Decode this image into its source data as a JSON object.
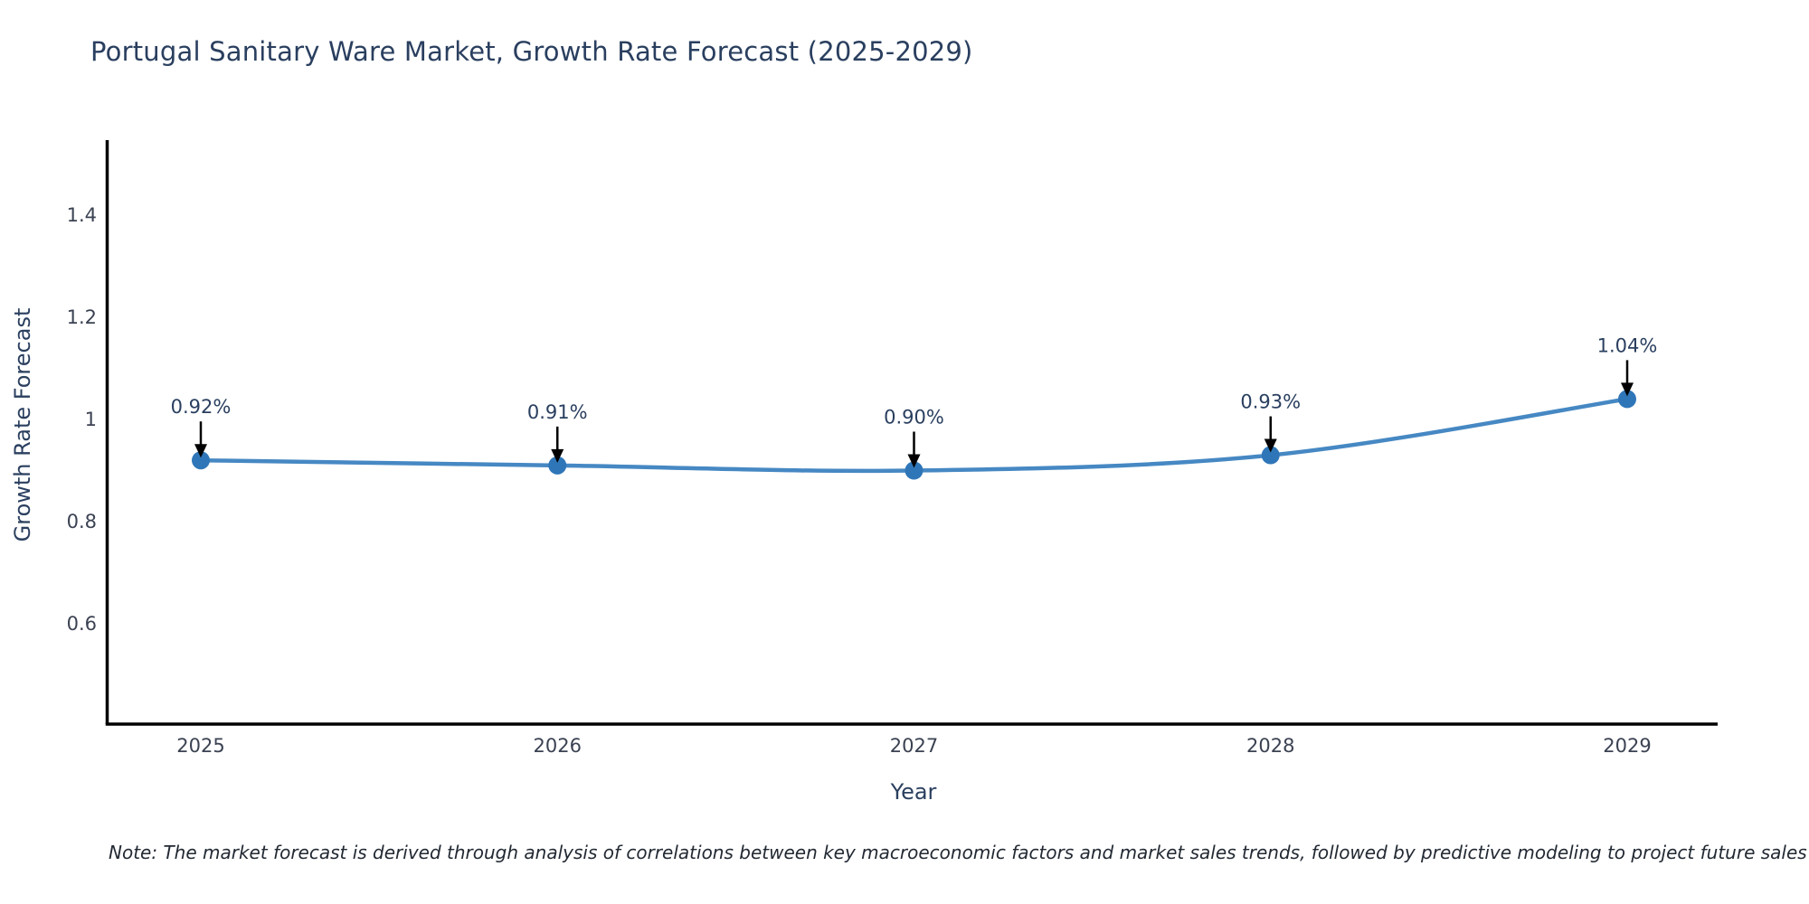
{
  "title": "Portugal Sanitary Ware Market, Growth Rate Forecast (2025-2029)",
  "note": "Note: The market forecast is derived through analysis of correlations between key macroeconomic factors and market sales trends, followed by predictive modeling to project future sales",
  "chart_data": {
    "type": "line",
    "title": "Portugal Sanitary Ware Market, Growth Rate Forecast (2025-2029)",
    "xlabel": "Year",
    "ylabel": "Growth Rate Forecast",
    "categories": [
      "2025",
      "2026",
      "2027",
      "2028",
      "2029"
    ],
    "values": [
      0.92,
      0.91,
      0.9,
      0.93,
      1.04
    ],
    "point_labels": [
      "0.92%",
      "0.91%",
      "0.90%",
      "0.93%",
      "1.04%"
    ],
    "yticks": [
      0.6,
      0.8,
      1,
      1.2,
      1.4
    ],
    "ytick_labels": [
      "0.6",
      "0.8",
      "1",
      "1.2",
      "1.4"
    ],
    "ylim": [
      0.4,
      1.55
    ],
    "grid": false,
    "legend_position": "none",
    "line_shape": "spline",
    "annotations_have_arrows": true,
    "colors": {
      "line": "#4688c3",
      "marker": "#2f76b8",
      "axis_line": "#000000",
      "tick_label": "#3b4252",
      "annotation_text": "#2a3f5f",
      "arrow": "#000000",
      "title_text": "#2a3f5f",
      "background": "#ffffff"
    }
  }
}
